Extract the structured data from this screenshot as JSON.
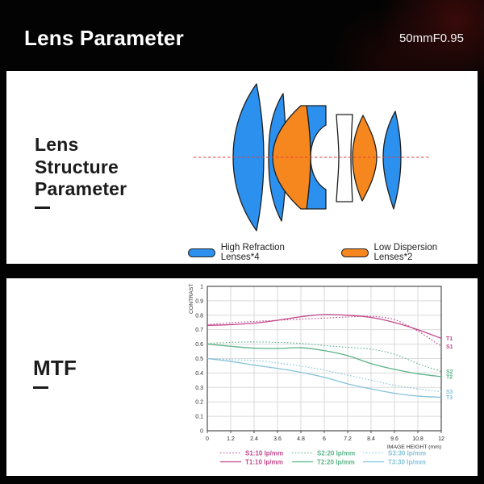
{
  "header": {
    "title": "Lens Parameter",
    "spec": "50mmF0.95"
  },
  "lens_section": {
    "heading_lines": [
      "Lens",
      "Structure",
      "Parameter"
    ],
    "diagram": {
      "blue": "#2B90EE",
      "orange": "#F6871E",
      "outline": "#1d1d1d",
      "axis_color": "#E04040"
    },
    "legend": [
      {
        "label": "High Refraction Lenses*4",
        "color": "#2B90EE"
      },
      {
        "label": "Low Dispersion Lenses*2",
        "color": "#F6871E"
      }
    ]
  },
  "mtf_section": {
    "heading": "MTF"
  },
  "chart_data": {
    "type": "line",
    "title": "MTF",
    "xlabel": "IMAGE HEIGHT (mm)",
    "ylabel": "CONTRAST",
    "xlim": [
      0,
      12
    ],
    "ylim": [
      0,
      1
    ],
    "grid": true,
    "legend_position": "bottom",
    "grid_color": "#d9d9d9",
    "border_color": "#4d4d4d",
    "tick_color": "#2b2b2b",
    "xticks": [
      0,
      1.2,
      2.4,
      3.6,
      4.8,
      6,
      7.2,
      8.4,
      9.6,
      10.8,
      12
    ],
    "xtick_labels": [
      "0",
      "1.2",
      "2.4",
      "3.6",
      "4.8",
      "6",
      "7.2",
      "8.4",
      "9.6",
      "10.8",
      "12"
    ],
    "yticks": [
      0,
      0.1,
      0.2,
      0.3,
      0.4,
      0.5,
      0.6,
      0.7,
      0.8,
      0.9,
      1
    ],
    "ytick_labels": [
      "0",
      "0.1",
      "0.2",
      "0.3",
      "0.4",
      "0.5",
      "0.6",
      "0.7",
      "0.8",
      "0.9",
      "1"
    ],
    "x": [
      0,
      1.2,
      2.4,
      3.6,
      4.8,
      6,
      7.2,
      8.4,
      9.6,
      10.8,
      12
    ],
    "series": [
      {
        "name": "S1:10 lp/mm",
        "end_label": "S1",
        "style": "dotted",
        "color": "#C2478C",
        "values": [
          0.735,
          0.748,
          0.757,
          0.765,
          0.773,
          0.78,
          0.788,
          0.792,
          0.77,
          0.69,
          0.585
        ]
      },
      {
        "name": "T1:10 lp/mm",
        "end_label": "T1",
        "style": "solid",
        "color": "#C2478C",
        "values": [
          0.73,
          0.735,
          0.745,
          0.765,
          0.79,
          0.805,
          0.8,
          0.785,
          0.75,
          0.7,
          0.64
        ]
      },
      {
        "name": "S2:20 lp/mm",
        "end_label": "S2",
        "style": "dotted",
        "color": "#5BB287",
        "values": [
          0.605,
          0.612,
          0.615,
          0.612,
          0.605,
          0.59,
          0.578,
          0.565,
          0.53,
          0.465,
          0.41
        ]
      },
      {
        "name": "T2:20 lp/mm",
        "end_label": "T2",
        "style": "solid",
        "color": "#5BB287",
        "values": [
          0.6,
          0.585,
          0.572,
          0.57,
          0.575,
          0.555,
          0.52,
          0.465,
          0.425,
          0.395,
          0.375
        ]
      },
      {
        "name": "S3:30 lp/mm",
        "end_label": "S3",
        "style": "dotted",
        "color": "#84C3DA",
        "values": [
          0.5,
          0.492,
          0.487,
          0.47,
          0.448,
          0.42,
          0.385,
          0.35,
          0.315,
          0.29,
          0.27
        ]
      },
      {
        "name": "T3:30 lp/mm",
        "end_label": "T3",
        "style": "solid",
        "color": "#84C3DA",
        "values": [
          0.5,
          0.48,
          0.455,
          0.432,
          0.405,
          0.37,
          0.325,
          0.29,
          0.26,
          0.24,
          0.232
        ]
      }
    ]
  }
}
